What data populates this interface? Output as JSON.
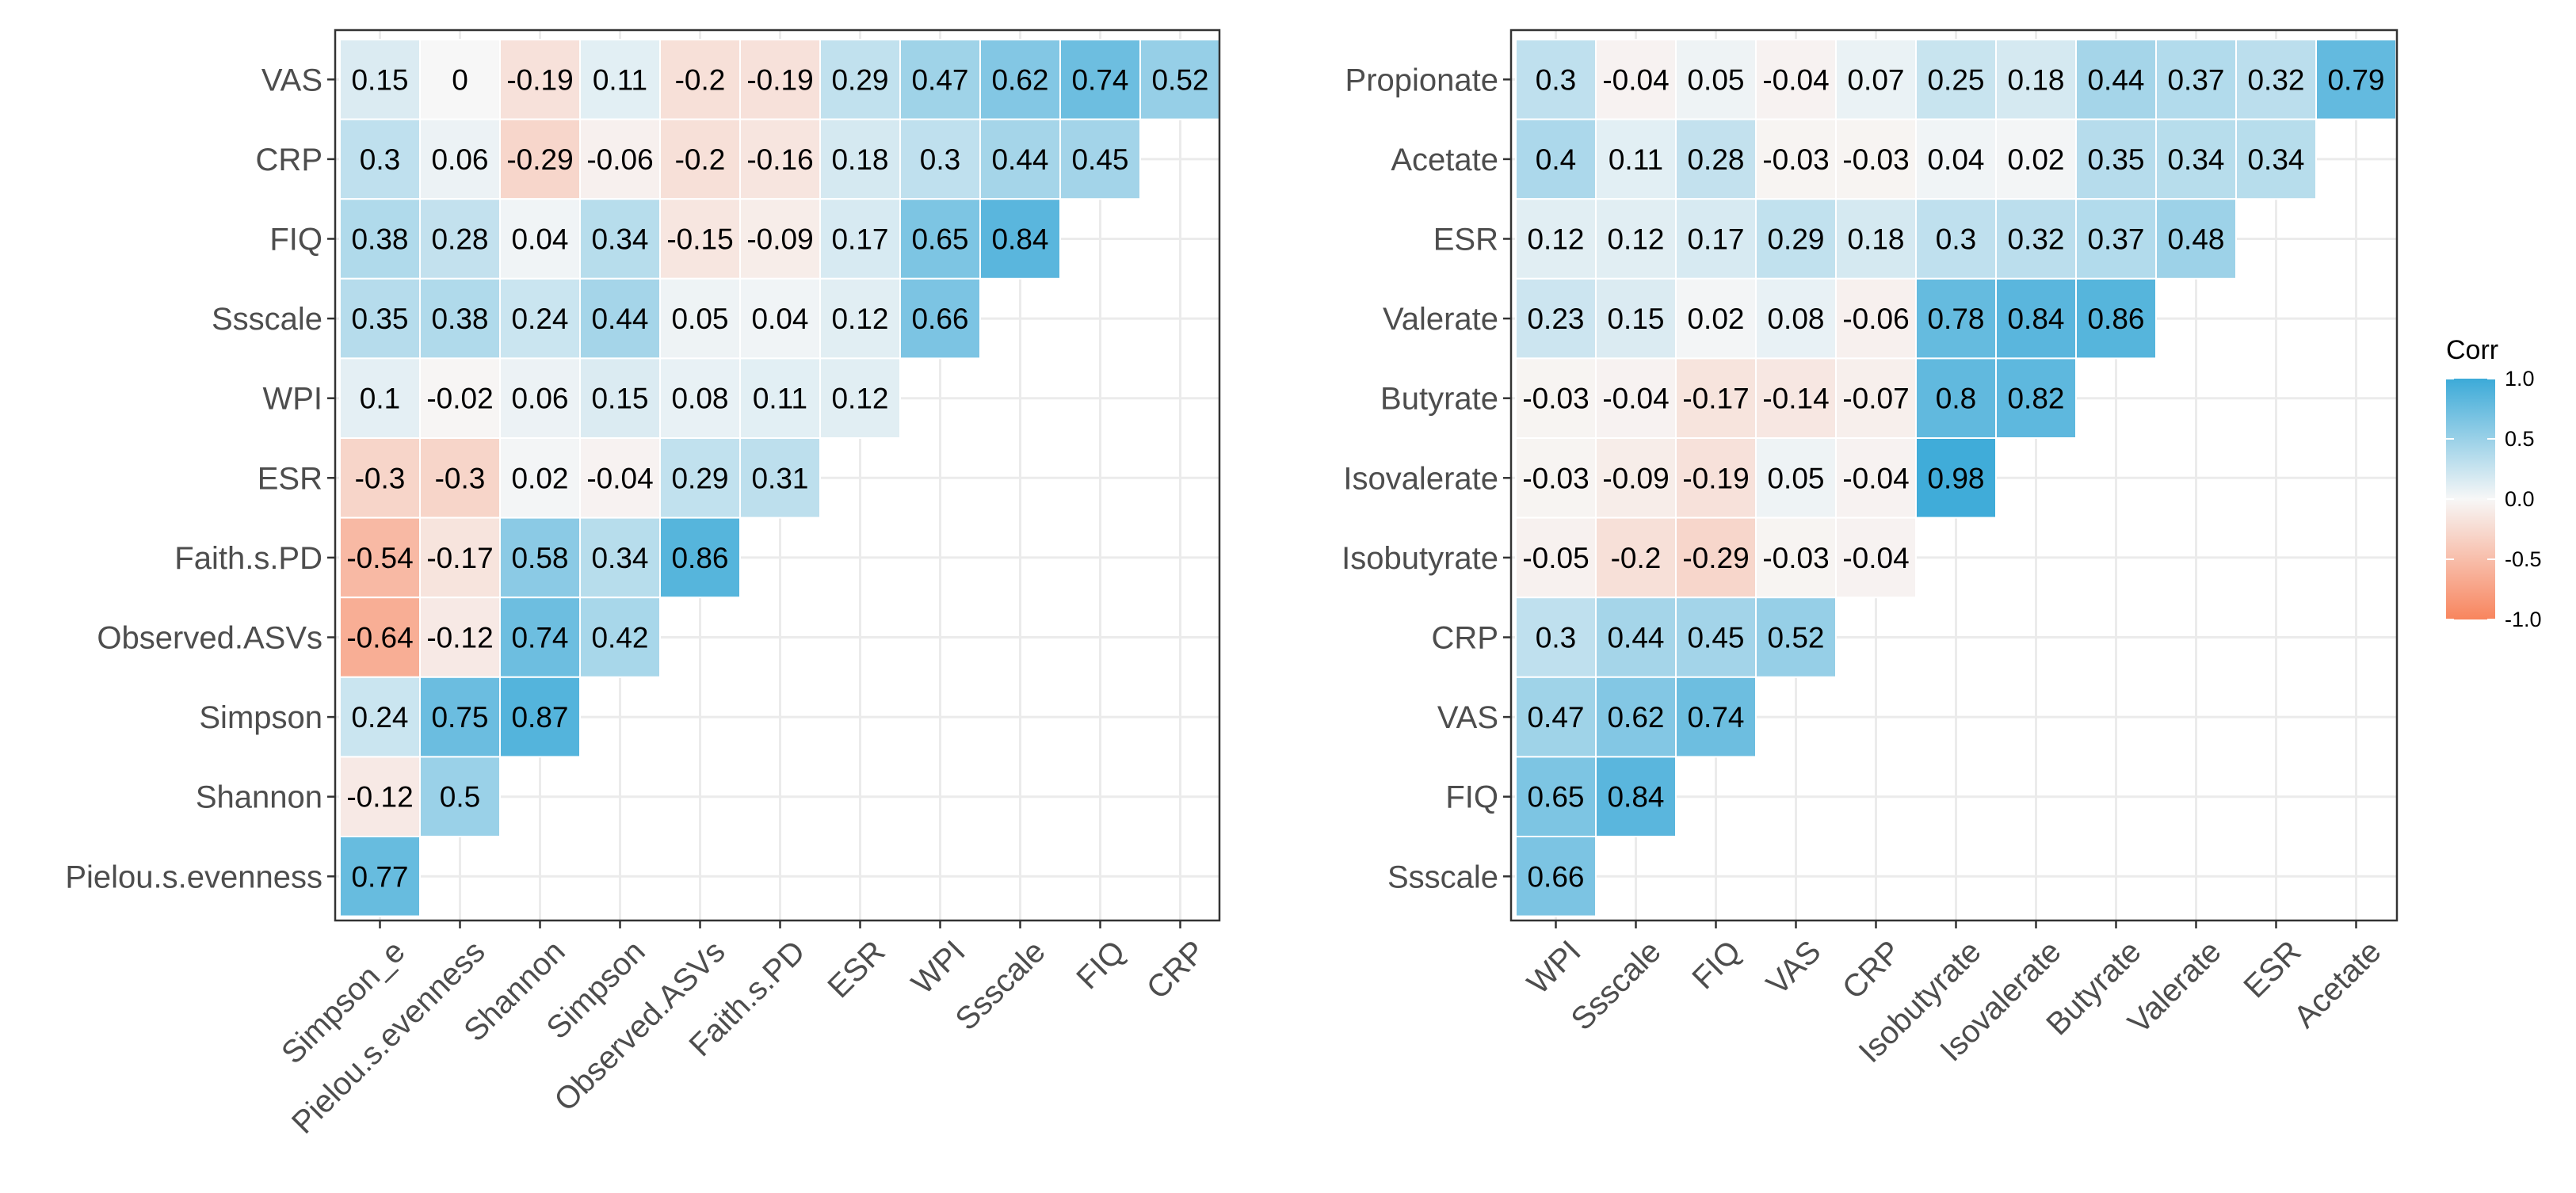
{
  "colors": {
    "low": "#F8855E",
    "mid": "#F7F7F7",
    "high": "#3CAAD8",
    "grid": "#EBEBEB",
    "panel_border": "#333333",
    "tick": "#4d4d4d"
  },
  "legend": {
    "title": "Corr",
    "breaks": [
      1.0,
      0.5,
      0.0,
      -0.5,
      -1.0
    ],
    "break_labels": [
      "1.0",
      "0.5",
      "0.0",
      "-0.5",
      "-1.0"
    ],
    "range": [
      -1,
      1
    ]
  },
  "chart_data": [
    {
      "type": "heatmap",
      "title": "",
      "xlabel": "",
      "ylabel": "",
      "x_categories": [
        "Simpson_e",
        "Pielou.s.evenness",
        "Shannon",
        "Simpson",
        "Observed.ASVs",
        "Faith.s.PD",
        "ESR",
        "WPI",
        "Ssscale",
        "FIQ",
        "CRP"
      ],
      "y_categories": [
        "VAS",
        "CRP",
        "FIQ",
        "Ssscale",
        "WPI",
        "ESR",
        "Faith.s.PD",
        "Observed.ASVs",
        "Simpson",
        "Shannon",
        "Pielou.s.evenness"
      ],
      "values": [
        [
          0.15,
          0,
          -0.19,
          0.11,
          -0.2,
          -0.19,
          0.29,
          0.47,
          0.62,
          0.74,
          0.52
        ],
        [
          0.3,
          0.06,
          -0.29,
          -0.06,
          -0.2,
          -0.16,
          0.18,
          0.3,
          0.44,
          0.45,
          null
        ],
        [
          0.38,
          0.28,
          0.04,
          0.34,
          -0.15,
          -0.09,
          0.17,
          0.65,
          0.84,
          null,
          null
        ],
        [
          0.35,
          0.38,
          0.24,
          0.44,
          0.05,
          0.04,
          0.12,
          0.66,
          null,
          null,
          null
        ],
        [
          0.1,
          -0.02,
          0.06,
          0.15,
          0.08,
          0.11,
          0.12,
          null,
          null,
          null,
          null
        ],
        [
          -0.3,
          -0.3,
          0.02,
          -0.04,
          0.29,
          0.31,
          null,
          null,
          null,
          null,
          null
        ],
        [
          -0.54,
          -0.17,
          0.58,
          0.34,
          0.86,
          null,
          null,
          null,
          null,
          null,
          null
        ],
        [
          -0.64,
          -0.12,
          0.74,
          0.42,
          null,
          null,
          null,
          null,
          null,
          null,
          null
        ],
        [
          0.24,
          0.75,
          0.87,
          null,
          null,
          null,
          null,
          null,
          null,
          null,
          null
        ],
        [
          -0.12,
          0.5,
          null,
          null,
          null,
          null,
          null,
          null,
          null,
          null,
          null
        ],
        [
          0.77,
          null,
          null,
          null,
          null,
          null,
          null,
          null,
          null,
          null,
          null
        ]
      ],
      "value_labels": [
        [
          "0.15",
          "0",
          "-0.19",
          "0.11",
          "-0.2",
          "-0.19",
          "0.29",
          "0.47",
          "0.62",
          "0.74",
          "0.52"
        ],
        [
          "0.3",
          "0.06",
          "-0.29",
          "-0.06",
          "-0.2",
          "-0.16",
          "0.18",
          "0.3",
          "0.44",
          "0.45",
          null
        ],
        [
          "0.38",
          "0.28",
          "0.04",
          "0.34",
          "-0.15",
          "-0.09",
          "0.17",
          "0.65",
          "0.84",
          null,
          null
        ],
        [
          "0.35",
          "0.38",
          "0.24",
          "0.44",
          "0.05",
          "0.04",
          "0.12",
          "0.66",
          null,
          null,
          null
        ],
        [
          "0.1",
          "-0.02",
          "0.06",
          "0.15",
          "0.08",
          "0.11",
          "0.12",
          null,
          null,
          null,
          null
        ],
        [
          "-0.3",
          "-0.3",
          "0.02",
          "-0.04",
          "0.29",
          "0.31",
          null,
          null,
          null,
          null,
          null
        ],
        [
          "-0.54",
          "-0.17",
          "0.58",
          "0.34",
          "0.86",
          null,
          null,
          null,
          null,
          null,
          null
        ],
        [
          "-0.64",
          "-0.12",
          "0.74",
          "0.42",
          null,
          null,
          null,
          null,
          null,
          null,
          null
        ],
        [
          "0.24",
          "0.75",
          "0.87",
          null,
          null,
          null,
          null,
          null,
          null,
          null,
          null
        ],
        [
          "-0.12",
          "0.5",
          null,
          null,
          null,
          null,
          null,
          null,
          null,
          null,
          null
        ],
        [
          "0.77",
          null,
          null,
          null,
          null,
          null,
          null,
          null,
          null,
          null,
          null
        ]
      ],
      "color_range": [
        -1,
        1
      ]
    },
    {
      "type": "heatmap",
      "title": "",
      "xlabel": "",
      "ylabel": "",
      "x_categories": [
        "WPI",
        "Ssscale",
        "FIQ",
        "VAS",
        "CRP",
        "Isobutyrate",
        "Isovalerate",
        "Butyrate",
        "Valerate",
        "ESR",
        "Acetate"
      ],
      "y_categories": [
        "Propionate",
        "Acetate",
        "ESR",
        "Valerate",
        "Butyrate",
        "Isovalerate",
        "Isobutyrate",
        "CRP",
        "VAS",
        "FIQ",
        "Ssscale"
      ],
      "values": [
        [
          0.3,
          -0.04,
          0.05,
          -0.04,
          0.07,
          0.25,
          0.18,
          0.44,
          0.37,
          0.32,
          0.79
        ],
        [
          0.4,
          0.11,
          0.28,
          -0.03,
          -0.03,
          0.04,
          0.02,
          0.35,
          0.34,
          0.34,
          null
        ],
        [
          0.12,
          0.12,
          0.17,
          0.29,
          0.18,
          0.3,
          0.32,
          0.37,
          0.48,
          null,
          null
        ],
        [
          0.23,
          0.15,
          0.02,
          0.08,
          -0.06,
          0.78,
          0.84,
          0.86,
          null,
          null,
          null
        ],
        [
          -0.03,
          -0.04,
          -0.17,
          -0.14,
          -0.07,
          0.8,
          0.82,
          null,
          null,
          null,
          null
        ],
        [
          -0.03,
          -0.09,
          -0.19,
          0.05,
          -0.04,
          0.98,
          null,
          null,
          null,
          null,
          null
        ],
        [
          -0.05,
          -0.2,
          -0.29,
          -0.03,
          -0.04,
          null,
          null,
          null,
          null,
          null,
          null
        ],
        [
          0.3,
          0.44,
          0.45,
          0.52,
          null,
          null,
          null,
          null,
          null,
          null,
          null
        ],
        [
          0.47,
          0.62,
          0.74,
          null,
          null,
          null,
          null,
          null,
          null,
          null,
          null
        ],
        [
          0.65,
          0.84,
          null,
          null,
          null,
          null,
          null,
          null,
          null,
          null,
          null
        ],
        [
          0.66,
          null,
          null,
          null,
          null,
          null,
          null,
          null,
          null,
          null,
          null
        ]
      ],
      "value_labels": [
        [
          "0.3",
          "-0.04",
          "0.05",
          "-0.04",
          "0.07",
          "0.25",
          "0.18",
          "0.44",
          "0.37",
          "0.32",
          "0.79"
        ],
        [
          "0.4",
          "0.11",
          "0.28",
          "-0.03",
          "-0.03",
          "0.04",
          "0.02",
          "0.35",
          "0.34",
          "0.34",
          null
        ],
        [
          "0.12",
          "0.12",
          "0.17",
          "0.29",
          "0.18",
          "0.3",
          "0.32",
          "0.37",
          "0.48",
          null,
          null
        ],
        [
          "0.23",
          "0.15",
          "0.02",
          "0.08",
          "-0.06",
          "0.78",
          "0.84",
          "0.86",
          null,
          null,
          null
        ],
        [
          "-0.03",
          "-0.04",
          "-0.17",
          "-0.14",
          "-0.07",
          "0.8",
          "0.82",
          null,
          null,
          null,
          null
        ],
        [
          "-0.03",
          "-0.09",
          "-0.19",
          "0.05",
          "-0.04",
          "0.98",
          null,
          null,
          null,
          null,
          null
        ],
        [
          "-0.05",
          "-0.2",
          "-0.29",
          "-0.03",
          "-0.04",
          null,
          null,
          null,
          null,
          null,
          null
        ],
        [
          "0.3",
          "0.44",
          "0.45",
          "0.52",
          null,
          null,
          null,
          null,
          null,
          null,
          null
        ],
        [
          "0.47",
          "0.62",
          "0.74",
          null,
          null,
          null,
          null,
          null,
          null,
          null,
          null
        ],
        [
          "0.65",
          "0.84",
          null,
          null,
          null,
          null,
          null,
          null,
          null,
          null,
          null
        ],
        [
          "0.66",
          null,
          null,
          null,
          null,
          null,
          null,
          null,
          null,
          null,
          null
        ]
      ],
      "color_range": [
        -1,
        1
      ]
    }
  ]
}
